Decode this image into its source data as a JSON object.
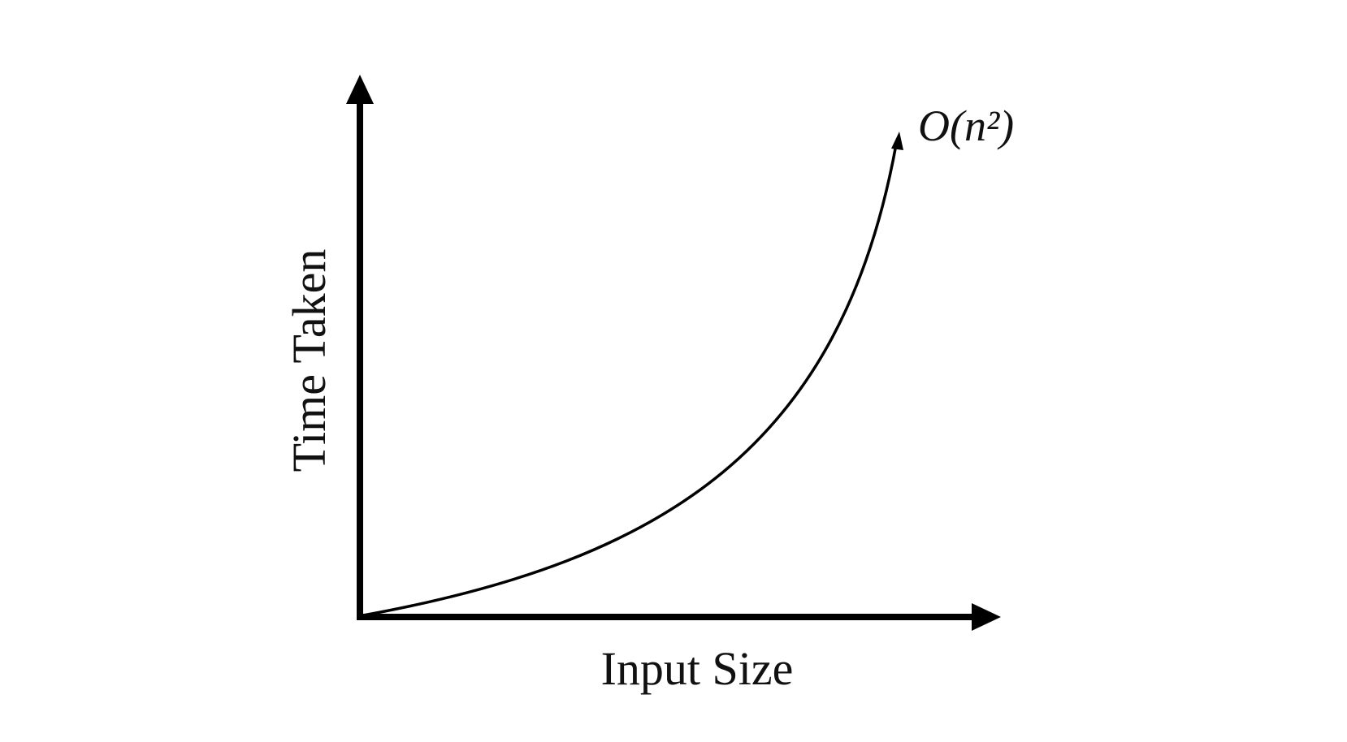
{
  "diagram": {
    "x_axis_label": "Input Size",
    "y_axis_label": "Time Taken",
    "curve_label": "O(n²)",
    "colors": {
      "ink": "#000000",
      "text": "#111111",
      "background": "#ffffff"
    }
  }
}
